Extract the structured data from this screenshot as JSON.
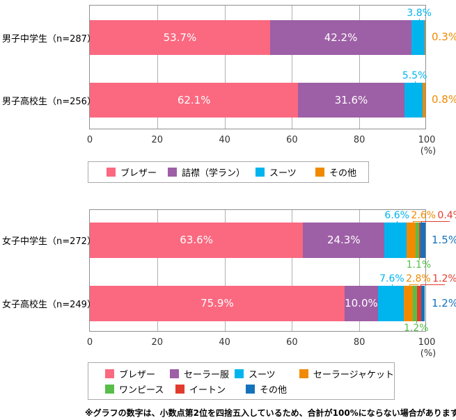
{
  "footnote": "※グラフの数字は、小数点第2位を四捨五入しているため、合計が100%にならない場合があります。",
  "chart_data": [
    {
      "type": "bar",
      "stacked": true,
      "orientation": "horizontal",
      "categories": [
        "男子中学生（n=287）",
        "男子高校生（n=256）"
      ],
      "series": [
        {
          "key": "blazer",
          "name": "ブレザー",
          "color": "#FA6980",
          "values": [
            53.7,
            62.1
          ],
          "label_pos": "inside"
        },
        {
          "key": "gakuran",
          "name": "詰襟（学ラン）",
          "color": "#9D5FA5",
          "values": [
            42.2,
            31.6
          ],
          "label_pos": "inside"
        },
        {
          "key": "suit",
          "name": "スーツ",
          "color": "#00B4EE",
          "values": [
            3.8,
            5.5
          ],
          "label_pos": "above"
        },
        {
          "key": "other",
          "name": "その他",
          "color": "#F18A00",
          "values": [
            0.3,
            0.8
          ],
          "label_pos": "right"
        }
      ],
      "xlim": [
        0,
        100
      ],
      "x_ticks": [
        "0",
        "20",
        "40",
        "60",
        "80",
        "100"
      ],
      "x_unit": "(%)",
      "grid": true,
      "legend_position": "bottom"
    },
    {
      "type": "bar",
      "stacked": true,
      "orientation": "horizontal",
      "categories": [
        "女子中学生（n=272）",
        "女子高校生（n=249）"
      ],
      "series": [
        {
          "key": "blazer",
          "name": "ブレザー",
          "color": "#FA6980",
          "values": [
            63.6,
            75.9
          ],
          "label_pos": "inside"
        },
        {
          "key": "sailor-fuku",
          "name": "セーラー服",
          "color": "#9D5FA5",
          "values": [
            24.3,
            10.0
          ],
          "label_pos": "inside"
        },
        {
          "key": "suit",
          "name": "スーツ",
          "color": "#00B4EE",
          "values": [
            6.6,
            7.6
          ],
          "label_pos": "above"
        },
        {
          "key": "sailor-jacket",
          "name": "セーラージャケット",
          "color": "#F18A00",
          "values": [
            2.6,
            2.8
          ],
          "label_pos": "above"
        },
        {
          "key": "one-piece",
          "name": "ワンピース",
          "color": "#57BE49",
          "values": [
            1.1,
            1.2
          ],
          "label_pos": "below"
        },
        {
          "key": "eton",
          "name": "イートン",
          "color": "#E23B2E",
          "values": [
            0.4,
            1.2
          ],
          "label_pos": "above"
        },
        {
          "key": "other",
          "name": "その他",
          "color": "#1472BC",
          "values": [
            1.5,
            1.2
          ],
          "label_pos": "right"
        }
      ],
      "xlim": [
        0,
        100
      ],
      "x_ticks": [
        "0",
        "20",
        "40",
        "60",
        "80",
        "100"
      ],
      "x_unit": "(%)",
      "grid": true,
      "legend_position": "bottom"
    }
  ]
}
